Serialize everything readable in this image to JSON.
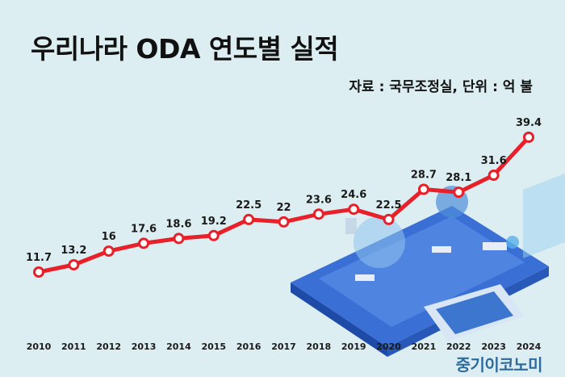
{
  "chart_data": {
    "type": "line",
    "title": "우리나라 ODA 연도별 실적",
    "subtitle": "자료 : 국무조정실, 단위 : 억 불",
    "x": [
      "2010",
      "2011",
      "2012",
      "2013",
      "2014",
      "2015",
      "2016",
      "2017",
      "2018",
      "2019",
      "2020",
      "2021",
      "2022",
      "2023",
      "2024"
    ],
    "series": [
      {
        "values": [
          11.7,
          13.2,
          16,
          17.6,
          18.6,
          19.2,
          22.5,
          22,
          23.6,
          24.6,
          22.5,
          28.7,
          28.1,
          31.6,
          39.4
        ]
      }
    ],
    "value_labels": [
      "11.7",
      "13.2",
      "16",
      "17.6",
      "18.6",
      "19.2",
      "22.5",
      "22",
      "23.6",
      "24.6",
      "22.5",
      "28.7",
      "28.1",
      "31.6",
      "39.4"
    ],
    "ylim": [
      0,
      45
    ],
    "grid": false,
    "line_color": "#e8202a",
    "marker_fill": "#ffffff"
  },
  "brand": "중기이코노미"
}
